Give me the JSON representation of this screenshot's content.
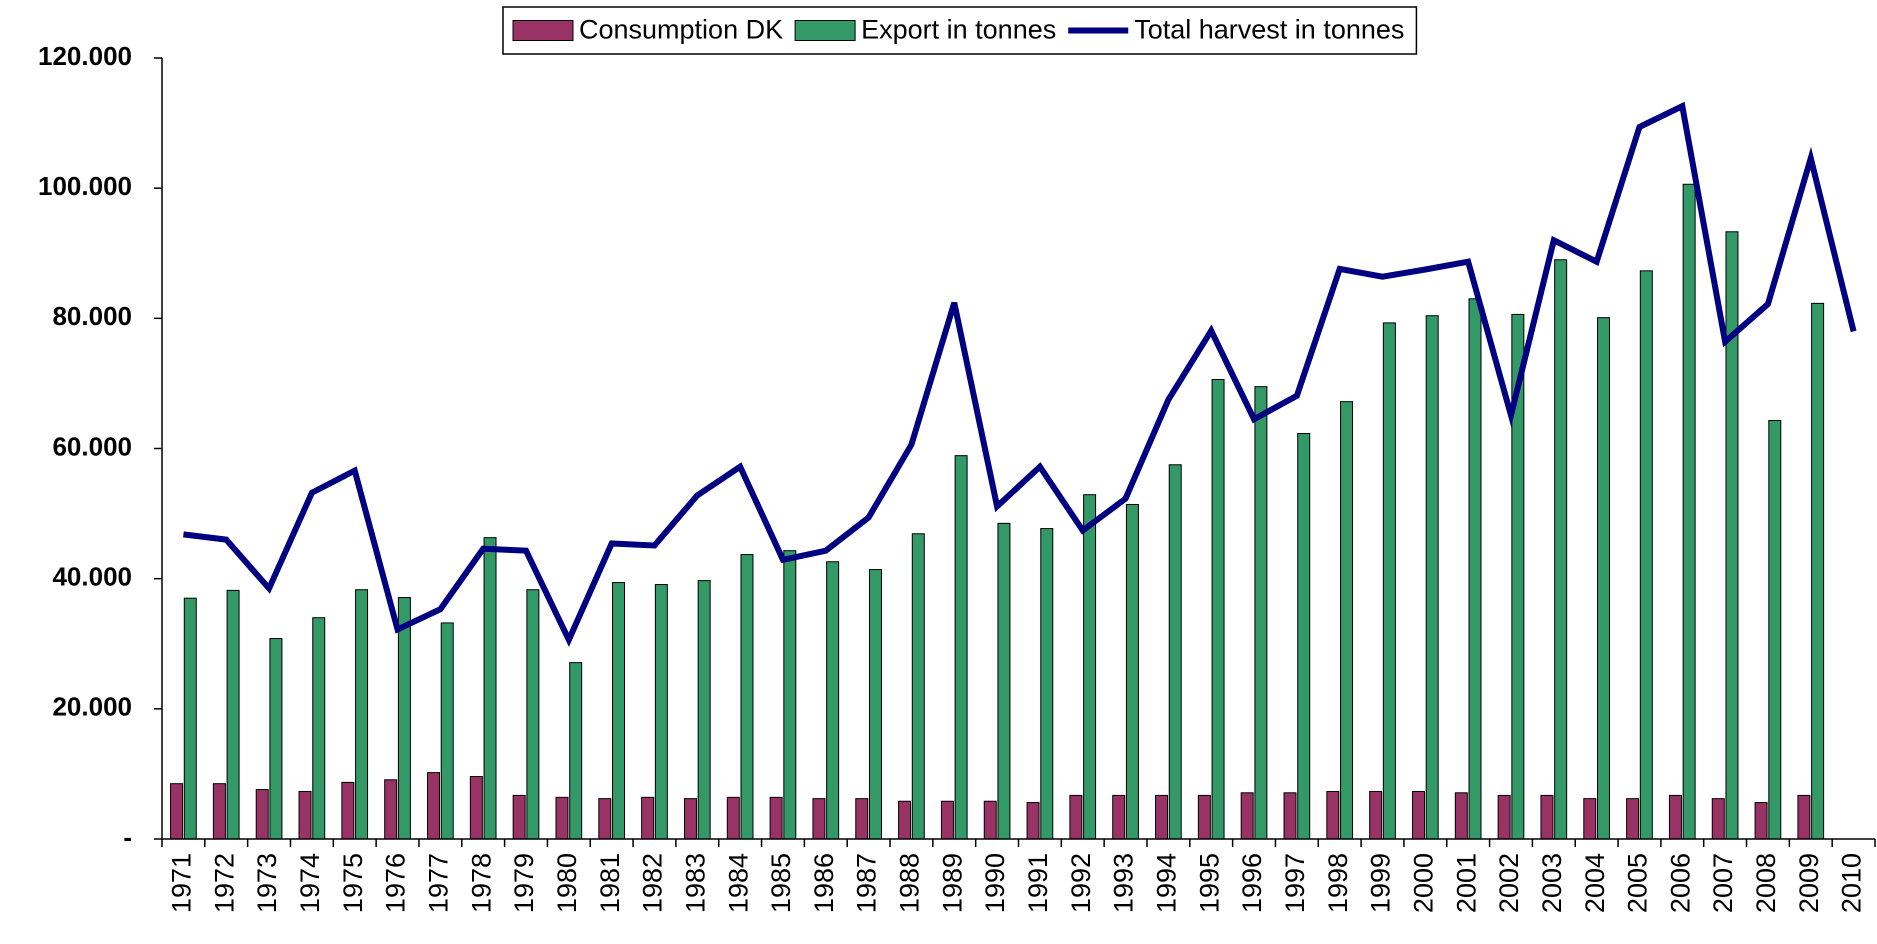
{
  "chart_data": {
    "type": "bar_line",
    "categories": [
      "1971",
      "1972",
      "1973",
      "1974",
      "1975",
      "1976",
      "1977",
      "1978",
      "1979",
      "1980",
      "1981",
      "1982",
      "1983",
      "1984",
      "1985",
      "1986",
      "1987",
      "1988",
      "1989",
      "1990",
      "1991",
      "1992",
      "1993",
      "1994",
      "1995",
      "1996",
      "1997",
      "1998",
      "1999",
      "2000",
      "2001",
      "2002",
      "2003",
      "2004",
      "2005",
      "2006",
      "2007",
      "2008",
      "2009",
      "2010"
    ],
    "series": [
      {
        "name": "Consumption DK",
        "type": "bar",
        "color": "#993366",
        "values": [
          8500,
          8500,
          7600,
          7300,
          8700,
          9100,
          10200,
          9600,
          6700,
          6400,
          6200,
          6400,
          6200,
          6400,
          6400,
          6200,
          6200,
          5800,
          5800,
          5800,
          5600,
          6700,
          6700,
          6700,
          6700,
          7100,
          7100,
          7300,
          7300,
          7300,
          7100,
          6700,
          6700,
          6200,
          6200,
          6700,
          6200,
          5600,
          6700,
          null
        ]
      },
      {
        "name": "Export in tonnes",
        "type": "bar",
        "color": "#339966",
        "values": [
          37000,
          38200,
          30800,
          34000,
          38300,
          37100,
          33200,
          46300,
          38300,
          27100,
          39400,
          39100,
          39700,
          43700,
          44300,
          42600,
          41400,
          46900,
          58900,
          48500,
          47700,
          52900,
          51400,
          57500,
          70600,
          69500,
          62300,
          67200,
          79300,
          80400,
          83000,
          80600,
          89000,
          80100,
          87300,
          100600,
          93300,
          64300,
          82300,
          null
        ]
      },
      {
        "name": "Total harvest in tonnes",
        "type": "line",
        "color": "#000080",
        "values": [
          46800,
          46000,
          38500,
          53200,
          56600,
          32200,
          35300,
          44600,
          44300,
          30600,
          45400,
          45100,
          52800,
          57200,
          42900,
          44300,
          49400,
          60600,
          82400,
          51100,
          57200,
          47400,
          52300,
          67500,
          78100,
          64500,
          68100,
          87600,
          86400,
          87500,
          88700,
          65100,
          92000,
          88700,
          109400,
          112600,
          76400,
          82200,
          104600,
          78000
        ]
      }
    ],
    "ylim": [
      0,
      120000
    ],
    "yticks": [
      {
        "value": 0,
        "label": "-"
      },
      {
        "value": 20000,
        "label": "20.000"
      },
      {
        "value": 40000,
        "label": "40.000"
      },
      {
        "value": 60000,
        "label": "60.000"
      },
      {
        "value": 80000,
        "label": "80.000"
      },
      {
        "value": 100000,
        "label": "100.000"
      },
      {
        "value": 120000,
        "label": "120.000"
      }
    ],
    "grid": false,
    "legend": "top"
  }
}
